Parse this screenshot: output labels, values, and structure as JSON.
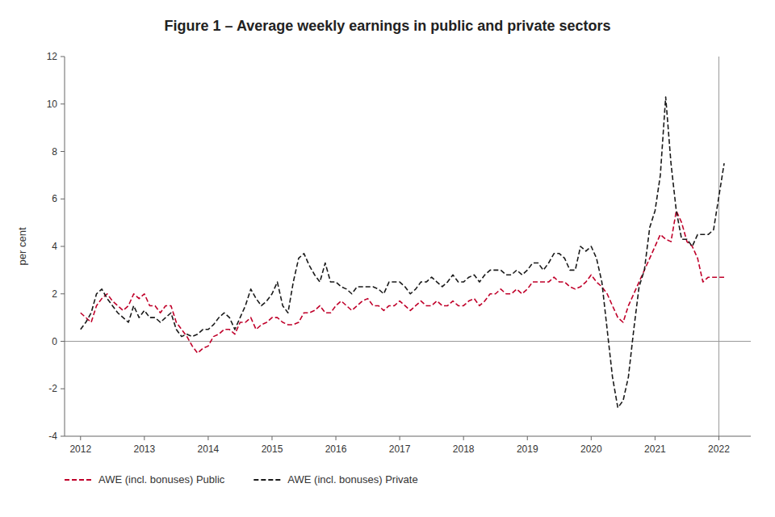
{
  "chart_data": {
    "type": "line",
    "title": "Figure 1 – Average weekly earnings in public and private sectors",
    "y_label": "per cent",
    "x": [
      2012.0,
      2012.083,
      2012.167,
      2012.25,
      2012.333,
      2012.417,
      2012.5,
      2012.583,
      2012.667,
      2012.75,
      2012.833,
      2012.917,
      2013.0,
      2013.083,
      2013.167,
      2013.25,
      2013.333,
      2013.417,
      2013.5,
      2013.583,
      2013.667,
      2013.75,
      2013.833,
      2013.917,
      2014.0,
      2014.083,
      2014.167,
      2014.25,
      2014.333,
      2014.417,
      2014.5,
      2014.583,
      2014.667,
      2014.75,
      2014.833,
      2014.917,
      2015.0,
      2015.083,
      2015.167,
      2015.25,
      2015.333,
      2015.417,
      2015.5,
      2015.583,
      2015.667,
      2015.75,
      2015.833,
      2015.917,
      2016.0,
      2016.083,
      2016.167,
      2016.25,
      2016.333,
      2016.417,
      2016.5,
      2016.583,
      2016.667,
      2016.75,
      2016.833,
      2016.917,
      2017.0,
      2017.083,
      2017.167,
      2017.25,
      2017.333,
      2017.417,
      2017.5,
      2017.583,
      2017.667,
      2017.75,
      2017.833,
      2017.917,
      2018.0,
      2018.083,
      2018.167,
      2018.25,
      2018.333,
      2018.417,
      2018.5,
      2018.583,
      2018.667,
      2018.75,
      2018.833,
      2018.917,
      2019.0,
      2019.083,
      2019.167,
      2019.25,
      2019.333,
      2019.417,
      2019.5,
      2019.583,
      2019.667,
      2019.75,
      2019.833,
      2019.917,
      2020.0,
      2020.083,
      2020.167,
      2020.25,
      2020.333,
      2020.417,
      2020.5,
      2020.583,
      2020.667,
      2020.75,
      2020.833,
      2020.917,
      2021.0,
      2021.083,
      2021.167,
      2021.25,
      2021.333,
      2021.417,
      2021.5,
      2021.583,
      2021.667,
      2021.75,
      2021.833,
      2021.917,
      2022.083
    ],
    "series": [
      {
        "name": "AWE (incl. bonuses) Public",
        "color": "#c0002a",
        "line_style": "dashed",
        "values": [
          1.2,
          1.0,
          0.8,
          1.5,
          1.8,
          2.0,
          1.7,
          1.5,
          1.3,
          1.5,
          2.0,
          1.8,
          2.0,
          1.5,
          1.5,
          1.2,
          1.5,
          1.5,
          0.8,
          0.5,
          0.2,
          -0.2,
          -0.5,
          -0.3,
          -0.2,
          0.2,
          0.3,
          0.5,
          0.5,
          0.3,
          0.8,
          0.8,
          1.0,
          0.5,
          0.7,
          0.8,
          1.0,
          1.0,
          0.8,
          0.7,
          0.7,
          0.8,
          1.2,
          1.2,
          1.3,
          1.5,
          1.2,
          1.2,
          1.5,
          1.7,
          1.5,
          1.3,
          1.5,
          1.7,
          1.8,
          1.5,
          1.5,
          1.3,
          1.5,
          1.5,
          1.7,
          1.5,
          1.3,
          1.5,
          1.7,
          1.5,
          1.5,
          1.7,
          1.5,
          1.5,
          1.7,
          1.5,
          1.5,
          1.7,
          1.8,
          1.5,
          1.7,
          2.0,
          2.0,
          2.2,
          2.0,
          2.0,
          2.2,
          2.0,
          2.2,
          2.5,
          2.5,
          2.5,
          2.5,
          2.7,
          2.5,
          2.5,
          2.3,
          2.2,
          2.3,
          2.5,
          2.8,
          2.5,
          2.3,
          2.0,
          1.5,
          1.0,
          0.8,
          1.5,
          2.0,
          2.5,
          3.0,
          3.5,
          4.0,
          4.5,
          4.3,
          4.2,
          5.5,
          5.0,
          4.2,
          4.0,
          3.5,
          2.5,
          2.7,
          2.7,
          2.7
        ]
      },
      {
        "name": "AWE (incl. bonuses) Private",
        "color": "#1a1a1a",
        "line_style": "dashed",
        "values": [
          0.5,
          0.8,
          1.2,
          2.0,
          2.2,
          1.8,
          1.5,
          1.2,
          1.0,
          0.8,
          1.5,
          1.0,
          1.3,
          1.0,
          1.0,
          0.8,
          1.0,
          1.2,
          0.5,
          0.2,
          0.3,
          0.2,
          0.3,
          0.5,
          0.5,
          0.7,
          1.0,
          1.2,
          1.0,
          0.5,
          1.0,
          1.5,
          2.2,
          1.8,
          1.5,
          1.7,
          2.0,
          2.5,
          1.5,
          1.2,
          2.5,
          3.5,
          3.7,
          3.2,
          2.8,
          2.5,
          3.3,
          2.5,
          2.5,
          2.3,
          2.2,
          2.0,
          2.3,
          2.3,
          2.3,
          2.3,
          2.2,
          2.0,
          2.5,
          2.5,
          2.5,
          2.3,
          2.0,
          2.2,
          2.5,
          2.5,
          2.7,
          2.5,
          2.3,
          2.5,
          2.8,
          2.5,
          2.5,
          2.7,
          2.8,
          2.5,
          2.8,
          3.0,
          3.0,
          3.0,
          2.8,
          2.8,
          3.0,
          2.8,
          3.0,
          3.3,
          3.3,
          3.0,
          3.3,
          3.7,
          3.7,
          3.5,
          3.0,
          3.0,
          4.0,
          3.8,
          4.0,
          3.5,
          2.5,
          0.5,
          -1.5,
          -2.8,
          -2.5,
          -1.5,
          0.5,
          2.3,
          3.0,
          4.8,
          5.5,
          7.0,
          10.3,
          7.5,
          5.5,
          4.3,
          4.3,
          4.0,
          4.5,
          4.5,
          4.5,
          4.7,
          7.5
        ]
      }
    ],
    "xlim": [
      2011.75,
      2022.5
    ],
    "xticks": [
      2012,
      2013,
      2014,
      2015,
      2016,
      2017,
      2018,
      2019,
      2020,
      2021,
      2022
    ],
    "ylim": [
      -4,
      12
    ],
    "yticks": [
      -4,
      -2,
      0,
      2,
      4,
      6,
      8,
      10,
      12
    ],
    "hlines": [
      0
    ],
    "vlines": [
      2022.0
    ],
    "grid": false,
    "legend": "bottom"
  }
}
